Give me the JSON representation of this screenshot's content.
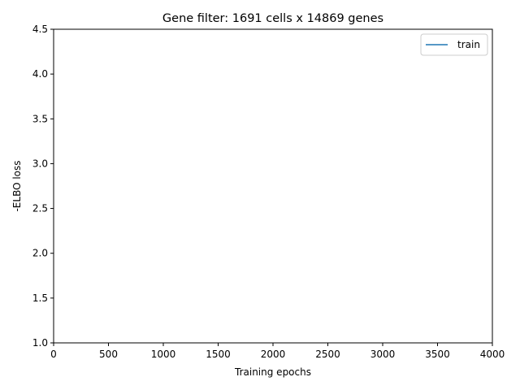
{
  "chart_data": {
    "type": "line",
    "title": "Gene filter: 1691 cells x 14869 genes",
    "xlabel": "Training epochs",
    "ylabel": "-ELBO loss",
    "xlim": [
      0,
      4000
    ],
    "ylim": [
      1.0,
      4.5
    ],
    "xticks": [
      0,
      500,
      1000,
      1500,
      2000,
      2500,
      3000,
      3500,
      4000
    ],
    "xtick_labels": [
      "0",
      "500",
      "1000",
      "1500",
      "2000",
      "2500",
      "3000",
      "3500",
      "4000"
    ],
    "yticks": [
      1.0,
      1.5,
      2.0,
      2.5,
      3.0,
      3.5,
      4.0,
      4.5
    ],
    "ytick_labels": [
      "1.0",
      "1.5",
      "2.0",
      "2.5",
      "3.0",
      "3.5",
      "4.0",
      "4.5"
    ],
    "grid": false,
    "legend_position": "top-right",
    "series": [
      {
        "name": "train",
        "color": "#1f77b4",
        "x": [],
        "y": []
      }
    ]
  }
}
